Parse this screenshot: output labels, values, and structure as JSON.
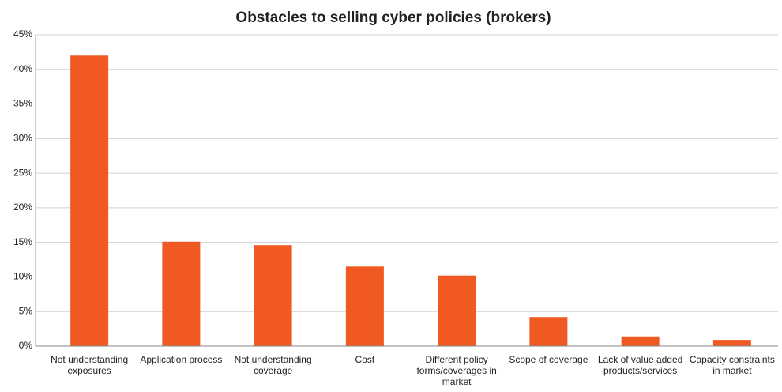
{
  "chart_data": {
    "type": "bar",
    "title": "Obstacles to selling cyber policies (brokers)",
    "categories": [
      "Not understanding exposures",
      "Application process",
      "Not understanding coverage",
      "Cost",
      "Different policy forms/coverages in market",
      "Scope of coverage",
      "Lack of value added products/services",
      "Capacity constraints in market"
    ],
    "values": [
      42,
      15.1,
      14.6,
      11.5,
      10.2,
      4.2,
      1.4,
      0.9
    ],
    "color": "#f05a22",
    "ylim": [
      0,
      45
    ],
    "yticks": [
      {
        "value": 0,
        "label": "0%"
      },
      {
        "value": 5,
        "label": "5%"
      },
      {
        "value": 10,
        "label": "10%"
      },
      {
        "value": 15,
        "label": "15%"
      },
      {
        "value": 20,
        "label": "20%"
      },
      {
        "value": 25,
        "label": "25%"
      },
      {
        "value": 30,
        "label": "30%"
      },
      {
        "value": 35,
        "label": "35%"
      },
      {
        "value": 40,
        "label": "40%"
      },
      {
        "value": 45,
        "label": "45%"
      }
    ],
    "grid": true
  }
}
